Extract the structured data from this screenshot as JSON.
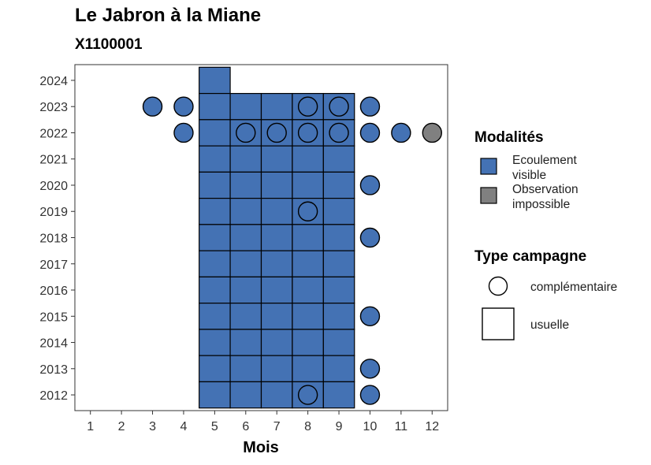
{
  "chart_data": {
    "type": "scatter",
    "title": "Le Jabron à la Miane",
    "subtitle": "X1100001",
    "xlabel": "Mois",
    "ylabel": "",
    "x_ticks": [
      1,
      2,
      3,
      4,
      5,
      6,
      7,
      8,
      9,
      10,
      11,
      12
    ],
    "y_ticks": [
      2012,
      2013,
      2014,
      2015,
      2016,
      2017,
      2018,
      2019,
      2020,
      2021,
      2022,
      2023,
      2024
    ],
    "xlim": [
      0.5,
      12.5
    ],
    "ylim": [
      2011.4,
      2024.6
    ],
    "colors": {
      "Ecoulement visible": "#4472b4",
      "Observation impossible": "#808080"
    },
    "usuelle": [
      {
        "year": 2024,
        "months": [
          5
        ]
      },
      {
        "year": 2023,
        "months": [
          5,
          6,
          7,
          8,
          9
        ]
      },
      {
        "year": 2022,
        "months": [
          5,
          6,
          7,
          8,
          9
        ]
      },
      {
        "year": 2021,
        "months": [
          5,
          6,
          7,
          8,
          9
        ]
      },
      {
        "year": 2020,
        "months": [
          5,
          6,
          7,
          8,
          9
        ]
      },
      {
        "year": 2019,
        "months": [
          5,
          6,
          7,
          8,
          9
        ]
      },
      {
        "year": 2018,
        "months": [
          5,
          6,
          7,
          8,
          9
        ]
      },
      {
        "year": 2017,
        "months": [
          5,
          6,
          7,
          8,
          9
        ]
      },
      {
        "year": 2016,
        "months": [
          5,
          6,
          7,
          8,
          9
        ]
      },
      {
        "year": 2015,
        "months": [
          5,
          6,
          7,
          8,
          9
        ]
      },
      {
        "year": 2014,
        "months": [
          5,
          6,
          7,
          8,
          9
        ]
      },
      {
        "year": 2013,
        "months": [
          5,
          6,
          7,
          8,
          9
        ]
      },
      {
        "year": 2012,
        "months": [
          5,
          6,
          7,
          8,
          9
        ]
      }
    ],
    "complementaire": [
      {
        "year": 2023,
        "month": 3,
        "modalite": "Ecoulement visible"
      },
      {
        "year": 2023,
        "month": 4,
        "modalite": "Ecoulement visible"
      },
      {
        "year": 2023,
        "month": 8,
        "modalite": "Ecoulement visible"
      },
      {
        "year": 2023,
        "month": 9,
        "modalite": "Ecoulement visible"
      },
      {
        "year": 2023,
        "month": 10,
        "modalite": "Ecoulement visible"
      },
      {
        "year": 2022,
        "month": 4,
        "modalite": "Ecoulement visible"
      },
      {
        "year": 2022,
        "month": 6,
        "modalite": "Ecoulement visible"
      },
      {
        "year": 2022,
        "month": 7,
        "modalite": "Ecoulement visible"
      },
      {
        "year": 2022,
        "month": 8,
        "modalite": "Ecoulement visible"
      },
      {
        "year": 2022,
        "month": 9,
        "modalite": "Ecoulement visible"
      },
      {
        "year": 2022,
        "month": 10,
        "modalite": "Ecoulement visible"
      },
      {
        "year": 2022,
        "month": 11,
        "modalite": "Ecoulement visible"
      },
      {
        "year": 2022,
        "month": 12,
        "modalite": "Observation impossible"
      },
      {
        "year": 2020,
        "month": 10,
        "modalite": "Ecoulement visible"
      },
      {
        "year": 2019,
        "month": 8,
        "modalite": "Ecoulement visible"
      },
      {
        "year": 2018,
        "month": 10,
        "modalite": "Ecoulement visible"
      },
      {
        "year": 2015,
        "month": 10,
        "modalite": "Ecoulement visible"
      },
      {
        "year": 2013,
        "month": 10,
        "modalite": "Ecoulement visible"
      },
      {
        "year": 2012,
        "month": 8,
        "modalite": "Ecoulement visible"
      },
      {
        "year": 2012,
        "month": 10,
        "modalite": "Ecoulement visible"
      }
    ],
    "legend": {
      "modalites_title": "Modalités",
      "modalites": [
        {
          "line1": "Ecoulement",
          "line2": "visible",
          "color": "#4472b4"
        },
        {
          "line1": "Observation",
          "line2": "impossible",
          "color": "#808080"
        }
      ],
      "type_title": "Type campagne",
      "types": [
        {
          "label": "complémentaire",
          "shape": "circle"
        },
        {
          "label": "usuelle",
          "shape": "square"
        }
      ],
      "position": "right"
    }
  }
}
